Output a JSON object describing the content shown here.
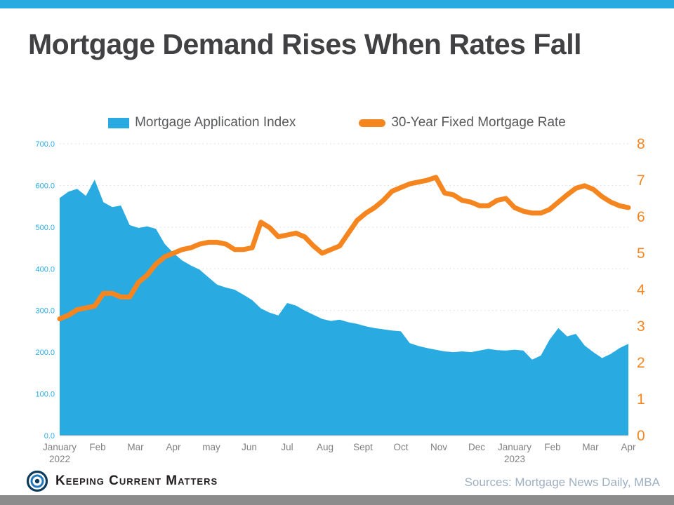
{
  "page": {
    "title": "Mortgage Demand Rises When Rates Fall",
    "brand": "Keeping Current Matters",
    "sources": "Sources: Mortgage News Daily, MBA"
  },
  "colors": {
    "accent_blue": "#29ABE2",
    "accent_orange": "#F5851F",
    "title_text": "#414042",
    "legend_text": "#58595B",
    "tick_text": "#7F7F7F",
    "grid": "#D8D8D8",
    "axis_line": "#C6C6C6",
    "sources_text": "#9FB0C2",
    "footer_bar": "#8C8C8C"
  },
  "legend": [
    {
      "label": "Mortgage Application Index",
      "color": "#29ABE2",
      "marker": "area"
    },
    {
      "label": "30-Year Fixed Mortgage Rate",
      "color": "#F5851F",
      "marker": "line"
    }
  ],
  "chart_data": {
    "type": "area+line",
    "title": "Mortgage Demand Rises When Rates Fall",
    "x_unit": "weekly observations, index 0-65 (Jan 2022 - Apr 2023)",
    "x_index_max": 65,
    "grid": "dashed horizontal",
    "left_axis": {
      "min": 0,
      "max": 700,
      "step": 100,
      "decimals": 1,
      "color": "#29ABE2"
    },
    "right_axis": {
      "min": 0,
      "max": 8,
      "step": 1,
      "decimals": 0,
      "color": "#F5851F"
    },
    "x_ticks": [
      {
        "pos": 0,
        "label": "January",
        "sub": "2022"
      },
      {
        "pos": 4.33,
        "label": "Feb"
      },
      {
        "pos": 8.67,
        "label": "Mar"
      },
      {
        "pos": 13,
        "label": "Apr"
      },
      {
        "pos": 17.33,
        "label": "may"
      },
      {
        "pos": 21.67,
        "label": "Jun"
      },
      {
        "pos": 26,
        "label": "Jul"
      },
      {
        "pos": 30.33,
        "label": "Aug"
      },
      {
        "pos": 34.67,
        "label": "Sept"
      },
      {
        "pos": 39,
        "label": "Oct"
      },
      {
        "pos": 43.33,
        "label": "Nov"
      },
      {
        "pos": 47.67,
        "label": "Dec"
      },
      {
        "pos": 52,
        "label": "January",
        "sub": "2023"
      },
      {
        "pos": 56.33,
        "label": "Feb"
      },
      {
        "pos": 60.67,
        "label": "Mar"
      },
      {
        "pos": 65,
        "label": "Apr"
      }
    ],
    "series": [
      {
        "name": "Mortgage Application Index",
        "type": "area",
        "axis": "left",
        "color": "#29ABE2",
        "values": [
          570,
          585,
          592,
          575,
          614,
          560,
          548,
          552,
          505,
          498,
          502,
          496,
          460,
          438,
          420,
          408,
          398,
          380,
          362,
          355,
          350,
          338,
          325,
          305,
          295,
          288,
          318,
          312,
          300,
          290,
          280,
          275,
          278,
          272,
          268,
          262,
          258,
          255,
          252,
          250,
          222,
          215,
          210,
          206,
          202,
          200,
          202,
          200,
          204,
          208,
          205,
          204,
          206,
          204,
          182,
          192,
          230,
          258,
          238,
          244,
          216,
          200,
          186,
          196,
          210,
          220
        ]
      },
      {
        "name": "30-Year Fixed Mortgage Rate",
        "type": "line",
        "axis": "right",
        "color": "#F5851F",
        "values": [
          3.2,
          3.3,
          3.45,
          3.5,
          3.55,
          3.9,
          3.9,
          3.8,
          3.8,
          4.2,
          4.4,
          4.7,
          4.9,
          5.0,
          5.1,
          5.15,
          5.25,
          5.3,
          5.3,
          5.25,
          5.1,
          5.1,
          5.15,
          5.85,
          5.7,
          5.45,
          5.5,
          5.55,
          5.45,
          5.2,
          5.0,
          5.1,
          5.2,
          5.55,
          5.9,
          6.1,
          6.25,
          6.45,
          6.7,
          6.8,
          6.9,
          6.95,
          7.0,
          7.08,
          6.65,
          6.6,
          6.45,
          6.4,
          6.3,
          6.3,
          6.45,
          6.5,
          6.25,
          6.15,
          6.1,
          6.1,
          6.2,
          6.4,
          6.6,
          6.78,
          6.85,
          6.75,
          6.55,
          6.4,
          6.3,
          6.25
        ]
      }
    ]
  }
}
